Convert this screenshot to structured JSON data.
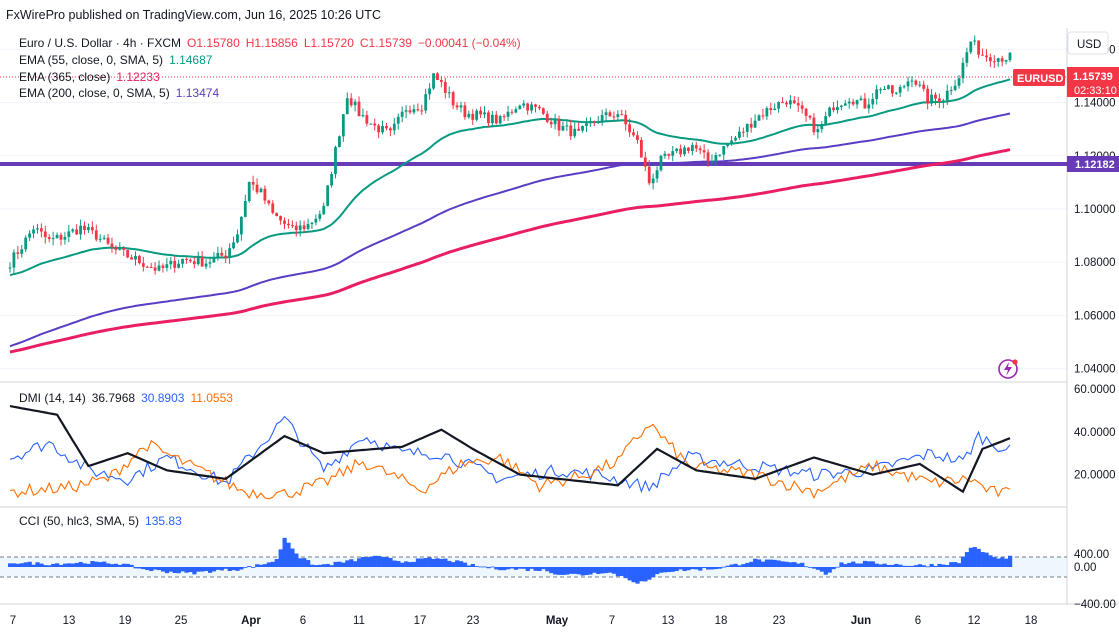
{
  "publisher": "FxWirePro published on TradingView.com, Jun 16, 2025 10:26 UTC",
  "currency": "USD",
  "symbol": "EURUSD",
  "header": {
    "title": "Euro / U.S. Dollar · 4h · FXCM",
    "open": "O1.15780",
    "high": "H1.15856",
    "low": "L1.15720",
    "close": "C1.15739",
    "change": "−0.00041 (−0.04%)",
    "ema55_label": "EMA (55, close, 0, SMA, 5)",
    "ema55_value": "1.14687",
    "ema365_label": "EMA (365, close)",
    "ema365_value": "1.12233",
    "ema200_label": "EMA (200, close, 0, SMA, 5)",
    "ema200_value": "1.13474"
  },
  "last_price": "1.15739",
  "countdown": "02:33:10",
  "hline_value": "1.12182",
  "dmi": {
    "label": "DMI (14, 14)",
    "adx": "36.7968",
    "plus_di": "30.8903",
    "minus_di": "11.0553"
  },
  "cci": {
    "label": "CCI (50, hlc3, SMA, 5)",
    "value": "135.83"
  },
  "colors": {
    "up": "#089981",
    "down": "#f23645",
    "ema55": "#089981",
    "ema200": "#5b3cc4",
    "ema365": "#e91e63",
    "hline": "#673ab7",
    "adx": "#131722",
    "plus_di": "#2962ff",
    "minus_di": "#ff6d00",
    "cci": "#2962ff",
    "last": "#f23645"
  },
  "chart_data": [
    {
      "type": "candlestick",
      "title": "Euro / U.S. Dollar · 4h · FXCM",
      "x_ticks": [
        "7",
        "13",
        "19",
        "25",
        "Apr",
        "6",
        "11",
        "17",
        "23",
        "May",
        "7",
        "13",
        "18",
        "23",
        "Jun",
        "6",
        "12",
        "18"
      ],
      "y_ticks": [
        "1.04000",
        "1.06000",
        "1.08000",
        "1.10000",
        "1.12000",
        "1.14000",
        "1.16000"
      ],
      "ylim": [
        1.035,
        1.168
      ],
      "anchors_close": [
        [
          0,
          1.08
        ],
        [
          3,
          1.086
        ],
        [
          6,
          1.093
        ],
        [
          10,
          1.088
        ],
        [
          14,
          1.09
        ],
        [
          18,
          1.093
        ],
        [
          22,
          1.09
        ],
        [
          26,
          1.085
        ],
        [
          32,
          1.081
        ],
        [
          38,
          1.077
        ],
        [
          44,
          1.081
        ],
        [
          50,
          1.08
        ],
        [
          55,
          1.083
        ],
        [
          58,
          1.091
        ],
        [
          61,
          1.11
        ],
        [
          64,
          1.106
        ],
        [
          67,
          1.098
        ],
        [
          72,
          1.092
        ],
        [
          76,
          1.094
        ],
        [
          80,
          1.1
        ],
        [
          83,
          1.122
        ],
        [
          86,
          1.143
        ],
        [
          89,
          1.136
        ],
        [
          93,
          1.131
        ],
        [
          97,
          1.128
        ],
        [
          101,
          1.138
        ],
        [
          105,
          1.139
        ],
        [
          108,
          1.15
        ],
        [
          110,
          1.147
        ],
        [
          113,
          1.14
        ],
        [
          116,
          1.136
        ],
        [
          120,
          1.135
        ],
        [
          125,
          1.133
        ],
        [
          130,
          1.14
        ],
        [
          135,
          1.137
        ],
        [
          140,
          1.131
        ],
        [
          145,
          1.128
        ],
        [
          150,
          1.134
        ],
        [
          155,
          1.136
        ],
        [
          160,
          1.125
        ],
        [
          163,
          1.11
        ],
        [
          166,
          1.118
        ],
        [
          170,
          1.121
        ],
        [
          174,
          1.124
        ],
        [
          178,
          1.118
        ],
        [
          182,
          1.123
        ],
        [
          186,
          1.128
        ],
        [
          190,
          1.134
        ],
        [
          194,
          1.138
        ],
        [
          198,
          1.141
        ],
        [
          202,
          1.136
        ],
        [
          206,
          1.129
        ],
        [
          210,
          1.139
        ],
        [
          214,
          1.142
        ],
        [
          218,
          1.139
        ],
        [
          222,
          1.146
        ],
        [
          226,
          1.143
        ],
        [
          230,
          1.15
        ],
        [
          234,
          1.141
        ],
        [
          238,
          1.142
        ],
        [
          242,
          1.15
        ],
        [
          245,
          1.163
        ],
        [
          248,
          1.158
        ],
        [
          252,
          1.157
        ]
      ],
      "series": [
        {
          "name": "EMA (55, close, 0, SMA, 5)",
          "value": 1.14687
        },
        {
          "name": "EMA (365, close)",
          "value": 1.12233
        },
        {
          "name": "EMA (200, close, 0, SMA, 5)",
          "value": 1.13474
        }
      ],
      "hline": 1.12182,
      "last": 1.15739
    },
    {
      "type": "line",
      "title": "DMI (14, 14)",
      "y_ticks": [
        "20.0000",
        "40.0000",
        "60.0000"
      ],
      "ylim": [
        0,
        60
      ],
      "series": [
        {
          "name": "ADX",
          "value": 36.7968,
          "points": [
            [
              0,
              52
            ],
            [
              12,
              48
            ],
            [
              20,
              24
            ],
            [
              30,
              30
            ],
            [
              40,
              22
            ],
            [
              55,
              18
            ],
            [
              70,
              38
            ],
            [
              80,
              30
            ],
            [
              100,
              33
            ],
            [
              110,
              41
            ],
            [
              118,
              32
            ],
            [
              130,
              20
            ],
            [
              145,
              17
            ],
            [
              155,
              15
            ],
            [
              165,
              32
            ],
            [
              175,
              22
            ],
            [
              190,
              18
            ],
            [
              205,
              28
            ],
            [
              220,
              20
            ],
            [
              232,
              25
            ],
            [
              243,
              12
            ],
            [
              248,
              32
            ],
            [
              255,
              37
            ]
          ]
        },
        {
          "name": "+DI",
          "value": 30.8903,
          "points": [
            [
              0,
              28
            ],
            [
              10,
              35
            ],
            [
              20,
              22
            ],
            [
              30,
              18
            ],
            [
              40,
              28
            ],
            [
              55,
              16
            ],
            [
              70,
              46
            ],
            [
              80,
              22
            ],
            [
              90,
              38
            ],
            [
              100,
              30
            ],
            [
              110,
              30
            ],
            [
              125,
              18
            ],
            [
              140,
              22
            ],
            [
              150,
              20
            ],
            [
              163,
              14
            ],
            [
              173,
              28
            ],
            [
              190,
              24
            ],
            [
              205,
              20
            ],
            [
              220,
              22
            ],
            [
              235,
              30
            ],
            [
              243,
              26
            ],
            [
              247,
              38
            ],
            [
              255,
              31
            ]
          ]
        },
        {
          "name": "−DI",
          "value": 11.0553,
          "points": [
            [
              0,
              12
            ],
            [
              15,
              14
            ],
            [
              25,
              18
            ],
            [
              35,
              34
            ],
            [
              45,
              25
            ],
            [
              60,
              12
            ],
            [
              70,
              11
            ],
            [
              80,
              16
            ],
            [
              90,
              26
            ],
            [
              105,
              13
            ],
            [
              115,
              25
            ],
            [
              125,
              28
            ],
            [
              135,
              15
            ],
            [
              145,
              19
            ],
            [
              155,
              26
            ],
            [
              163,
              44
            ],
            [
              173,
              24
            ],
            [
              190,
              20
            ],
            [
              205,
              12
            ],
            [
              220,
              24
            ],
            [
              235,
              16
            ],
            [
              245,
              18
            ],
            [
              250,
              12
            ],
            [
              255,
              11
            ]
          ]
        }
      ]
    },
    {
      "type": "area",
      "title": "CCI (50, hlc3, SMA, 5)",
      "y_ticks": [
        "400.00",
        "0.00",
        "−400.00"
      ],
      "ylim": [
        -430,
        440
      ],
      "levels": [
        100,
        -100
      ],
      "values_anchor": [
        [
          0,
          60
        ],
        [
          10,
          40
        ],
        [
          20,
          60
        ],
        [
          28,
          45
        ],
        [
          34,
          -30
        ],
        [
          40,
          -60
        ],
        [
          46,
          -80
        ],
        [
          52,
          -50
        ],
        [
          58,
          -30
        ],
        [
          64,
          30
        ],
        [
          68,
          90
        ],
        [
          70,
          380
        ],
        [
          72,
          250
        ],
        [
          74,
          120
        ],
        [
          78,
          20
        ],
        [
          82,
          40
        ],
        [
          88,
          90
        ],
        [
          92,
          140
        ],
        [
          96,
          110
        ],
        [
          100,
          70
        ],
        [
          108,
          110
        ],
        [
          112,
          90
        ],
        [
          118,
          20
        ],
        [
          124,
          -20
        ],
        [
          130,
          -30
        ],
        [
          136,
          -40
        ],
        [
          140,
          -90
        ],
        [
          146,
          -100
        ],
        [
          152,
          -60
        ],
        [
          156,
          -120
        ],
        [
          160,
          -200
        ],
        [
          163,
          -180
        ],
        [
          166,
          -60
        ],
        [
          172,
          -40
        ],
        [
          180,
          -20
        ],
        [
          186,
          40
        ],
        [
          190,
          90
        ],
        [
          196,
          70
        ],
        [
          202,
          40
        ],
        [
          206,
          -30
        ],
        [
          208,
          -90
        ],
        [
          212,
          50
        ],
        [
          218,
          60
        ],
        [
          224,
          40
        ],
        [
          230,
          20
        ],
        [
          236,
          30
        ],
        [
          242,
          60
        ],
        [
          245,
          260
        ],
        [
          248,
          200
        ],
        [
          252,
          100
        ],
        [
          255,
          136
        ]
      ]
    }
  ]
}
